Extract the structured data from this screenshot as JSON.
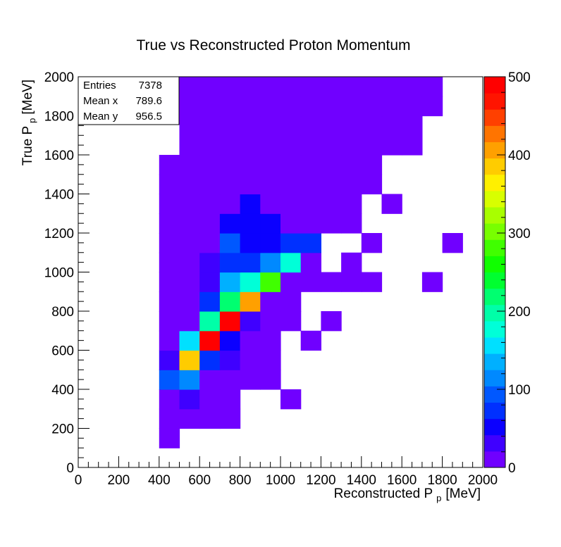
{
  "chart_data": {
    "type": "heatmap",
    "title": "True vs Reconstructed Proton Momentum",
    "xlabel": {
      "base": "Reconstructed P",
      "sub": "p",
      "unit": "[MeV]"
    },
    "ylabel": {
      "base": "True P",
      "sub": "p",
      "unit": "[MeV]"
    },
    "xlim": [
      0,
      2000
    ],
    "ylim": [
      0,
      2000
    ],
    "bin_width": 100,
    "x_ticks": [
      0,
      200,
      400,
      600,
      800,
      1000,
      1200,
      1400,
      1600,
      1800,
      2000
    ],
    "y_ticks": [
      0,
      200,
      400,
      600,
      800,
      1000,
      1200,
      1400,
      1600,
      1800,
      2000
    ],
    "z_range": [
      0,
      500
    ],
    "z_ticks": [
      0,
      100,
      200,
      300,
      400,
      500
    ],
    "colormap": [
      "#7000ff",
      "#3f00ff",
      "#0b00ff",
      "#0030ff",
      "#0058ff",
      "#0089ff",
      "#00b0ff",
      "#00e0ff",
      "#00ffd8",
      "#00ffa8",
      "#00ff70",
      "#00ff30",
      "#10ff00",
      "#40ff00",
      "#78ff00",
      "#a8ff00",
      "#d8ff00",
      "#fff000",
      "#ffcc00",
      "#ffa000",
      "#ff7400",
      "#ff4000",
      "#ff1400",
      "#ff0000"
    ],
    "stats": {
      "rows": [
        {
          "label": "Entries",
          "value": "7378"
        },
        {
          "label": "Mean x",
          "value": "789.6"
        },
        {
          "label": "Mean y",
          "value": "956.5"
        }
      ]
    },
    "bins": [
      [
        400,
        100,
        5
      ],
      [
        400,
        200,
        5
      ],
      [
        500,
        200,
        5
      ],
      [
        600,
        200,
        5
      ],
      [
        700,
        200,
        5
      ],
      [
        400,
        300,
        5
      ],
      [
        500,
        300,
        40
      ],
      [
        600,
        300,
        20
      ],
      [
        700,
        300,
        5
      ],
      [
        1000,
        300,
        5
      ],
      [
        400,
        400,
        90
      ],
      [
        500,
        400,
        110
      ],
      [
        600,
        400,
        20
      ],
      [
        700,
        400,
        5
      ],
      [
        800,
        400,
        5
      ],
      [
        900,
        400,
        5
      ],
      [
        400,
        500,
        40
      ],
      [
        500,
        500,
        380
      ],
      [
        600,
        500,
        80
      ],
      [
        700,
        500,
        30
      ],
      [
        800,
        500,
        5
      ],
      [
        900,
        500,
        5
      ],
      [
        400,
        600,
        5
      ],
      [
        500,
        600,
        150
      ],
      [
        600,
        600,
        500
      ],
      [
        700,
        600,
        50
      ],
      [
        800,
        600,
        5
      ],
      [
        900,
        600,
        5
      ],
      [
        1100,
        600,
        5
      ],
      [
        400,
        700,
        5
      ],
      [
        500,
        700,
        20
      ],
      [
        600,
        700,
        200
      ],
      [
        700,
        700,
        490
      ],
      [
        800,
        700,
        30
      ],
      [
        900,
        700,
        5
      ],
      [
        1000,
        700,
        5
      ],
      [
        1200,
        700,
        5
      ],
      [
        400,
        800,
        5
      ],
      [
        500,
        800,
        20
      ],
      [
        600,
        800,
        80
      ],
      [
        700,
        800,
        220
      ],
      [
        800,
        800,
        400
      ],
      [
        900,
        800,
        5
      ],
      [
        1000,
        800,
        5
      ],
      [
        400,
        900,
        5
      ],
      [
        500,
        900,
        20
      ],
      [
        600,
        900,
        40
      ],
      [
        700,
        900,
        140
      ],
      [
        800,
        900,
        170
      ],
      [
        900,
        900,
        280
      ],
      [
        1000,
        900,
        5
      ],
      [
        1100,
        900,
        5
      ],
      [
        1200,
        900,
        5
      ],
      [
        1300,
        900,
        5
      ],
      [
        1400,
        900,
        5
      ],
      [
        1700,
        900,
        5
      ],
      [
        400,
        1000,
        5
      ],
      [
        500,
        1000,
        20
      ],
      [
        600,
        1000,
        40
      ],
      [
        700,
        1000,
        80
      ],
      [
        800,
        1000,
        80
      ],
      [
        900,
        1000,
        110
      ],
      [
        1000,
        1000,
        170
      ],
      [
        1100,
        1000,
        5
      ],
      [
        1300,
        1000,
        5
      ],
      [
        400,
        1100,
        5
      ],
      [
        500,
        1100,
        5
      ],
      [
        600,
        1100,
        20
      ],
      [
        700,
        1100,
        90
      ],
      [
        800,
        1100,
        50
      ],
      [
        900,
        1100,
        50
      ],
      [
        1000,
        1100,
        80
      ],
      [
        1100,
        1100,
        80
      ],
      [
        1400,
        1100,
        5
      ],
      [
        1800,
        1100,
        5
      ],
      [
        400,
        1200,
        5
      ],
      [
        500,
        1200,
        5
      ],
      [
        600,
        1200,
        20
      ],
      [
        700,
        1200,
        50
      ],
      [
        800,
        1200,
        50
      ],
      [
        900,
        1200,
        50
      ],
      [
        1000,
        1200,
        20
      ],
      [
        1100,
        1200,
        20
      ],
      [
        1200,
        1200,
        20
      ],
      [
        1300,
        1200,
        5
      ],
      [
        400,
        1300,
        5
      ],
      [
        500,
        1300,
        5
      ],
      [
        600,
        1300,
        20
      ],
      [
        700,
        1300,
        20
      ],
      [
        800,
        1300,
        50
      ],
      [
        900,
        1300,
        20
      ],
      [
        1000,
        1300,
        20
      ],
      [
        1100,
        1300,
        20
      ],
      [
        1200,
        1300,
        20
      ],
      [
        1300,
        1300,
        5
      ],
      [
        1500,
        1300,
        5
      ],
      [
        400,
        1400,
        5
      ],
      [
        500,
        1400,
        5
      ],
      [
        600,
        1400,
        20
      ],
      [
        700,
        1400,
        20
      ],
      [
        800,
        1400,
        20
      ],
      [
        900,
        1400,
        5
      ],
      [
        1000,
        1400,
        20
      ],
      [
        1100,
        1400,
        5
      ],
      [
        1200,
        1400,
        5
      ],
      [
        1300,
        1400,
        5
      ],
      [
        1400,
        1400,
        5
      ],
      [
        400,
        1500,
        5
      ],
      [
        500,
        1500,
        5
      ],
      [
        600,
        1500,
        5
      ],
      [
        700,
        1500,
        20
      ],
      [
        800,
        1500,
        5
      ],
      [
        900,
        1500,
        20
      ],
      [
        1000,
        1500,
        5
      ],
      [
        1100,
        1500,
        5
      ],
      [
        1200,
        1500,
        5
      ],
      [
        1300,
        1500,
        5
      ],
      [
        1400,
        1500,
        5
      ],
      [
        500,
        1600,
        5
      ],
      [
        600,
        1600,
        5
      ],
      [
        700,
        1600,
        5
      ],
      [
        800,
        1600,
        5
      ],
      [
        900,
        1600,
        20
      ],
      [
        1000,
        1600,
        5
      ],
      [
        1100,
        1600,
        5
      ],
      [
        1200,
        1600,
        5
      ],
      [
        1300,
        1600,
        5
      ],
      [
        1400,
        1600,
        5
      ],
      [
        1500,
        1600,
        5
      ],
      [
        1600,
        1600,
        5
      ],
      [
        500,
        1700,
        5
      ],
      [
        600,
        1700,
        5
      ],
      [
        700,
        1700,
        5
      ],
      [
        800,
        1700,
        5
      ],
      [
        900,
        1700,
        5
      ],
      [
        1000,
        1700,
        5
      ],
      [
        1100,
        1700,
        5
      ],
      [
        1200,
        1700,
        5
      ],
      [
        1300,
        1700,
        5
      ],
      [
        1400,
        1700,
        5
      ],
      [
        1500,
        1700,
        5
      ],
      [
        1600,
        1700,
        5
      ],
      [
        500,
        1800,
        5
      ],
      [
        600,
        1800,
        5
      ],
      [
        700,
        1800,
        5
      ],
      [
        800,
        1800,
        5
      ],
      [
        900,
        1800,
        5
      ],
      [
        1000,
        1800,
        5
      ],
      [
        1100,
        1800,
        5
      ],
      [
        1200,
        1800,
        5
      ],
      [
        1300,
        1800,
        5
      ],
      [
        1400,
        1800,
        5
      ],
      [
        1500,
        1800,
        5
      ],
      [
        1600,
        1800,
        5
      ],
      [
        1700,
        1800,
        5
      ],
      [
        500,
        1900,
        5
      ],
      [
        600,
        1900,
        5
      ],
      [
        700,
        1900,
        5
      ],
      [
        800,
        1900,
        5
      ],
      [
        900,
        1900,
        5
      ],
      [
        1000,
        1900,
        5
      ],
      [
        1100,
        1900,
        5
      ],
      [
        1200,
        1900,
        5
      ],
      [
        1300,
        1900,
        5
      ],
      [
        1400,
        1900,
        5
      ],
      [
        1500,
        1900,
        5
      ],
      [
        1600,
        1900,
        5
      ],
      [
        1700,
        1900,
        5
      ]
    ]
  }
}
